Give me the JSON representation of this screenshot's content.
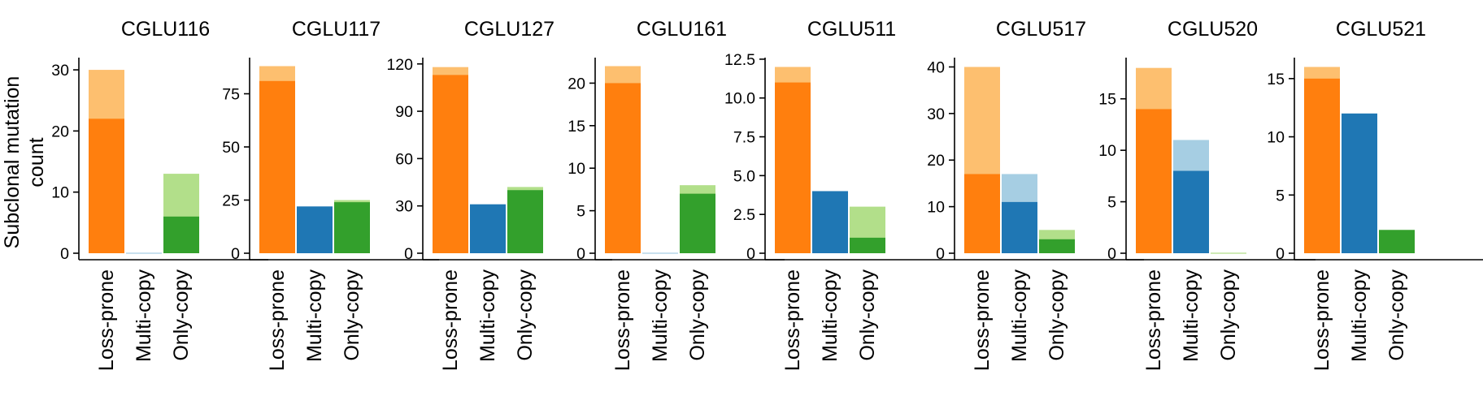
{
  "chart_data": {
    "type": "bar",
    "stacked": true,
    "ylabel_lines": [
      "Subclonal mutation",
      "count"
    ],
    "categories": [
      "Loss-prone",
      "Multi-copy",
      "Only-copy"
    ],
    "colors": {
      "Loss-prone": {
        "dark": "#ff7f0e",
        "light": "#fdbf6f"
      },
      "Multi-copy": {
        "dark": "#1f77b4",
        "light": "#a6cee3"
      },
      "Only-copy": {
        "dark": "#33a02c",
        "light": "#b2df8a"
      }
    },
    "panels": [
      {
        "title": "CGLU116",
        "ylim": [
          0,
          32
        ],
        "yticks": [
          0,
          10,
          20,
          30
        ],
        "ytick_labels": [
          "0",
          "10",
          "20",
          "30"
        ],
        "dark": [
          22,
          0,
          6
        ],
        "total": [
          30,
          0,
          13
        ]
      },
      {
        "title": "CGLU117",
        "ylim": [
          0,
          92
        ],
        "yticks": [
          0,
          25,
          50,
          75
        ],
        "ytick_labels": [
          "0",
          "25",
          "50",
          "75"
        ],
        "dark": [
          81,
          22,
          24
        ],
        "total": [
          88,
          22,
          25
        ]
      },
      {
        "title": "CGLU127",
        "ylim": [
          0,
          124
        ],
        "yticks": [
          0,
          30,
          60,
          90,
          120
        ],
        "ytick_labels": [
          "0",
          "30",
          "60",
          "90",
          "120"
        ],
        "dark": [
          113,
          31,
          40
        ],
        "total": [
          118,
          31,
          42
        ]
      },
      {
        "title": "CGLU161",
        "ylim": [
          0,
          23
        ],
        "yticks": [
          0,
          5,
          10,
          15,
          20
        ],
        "ytick_labels": [
          "0",
          "5",
          "10",
          "15",
          "20"
        ],
        "dark": [
          20,
          0,
          7
        ],
        "total": [
          22,
          0,
          8
        ]
      },
      {
        "title": "CGLU511",
        "ylim": [
          0,
          12.6
        ],
        "yticks": [
          0,
          2.5,
          5,
          7.5,
          10,
          12.5
        ],
        "ytick_labels": [
          "0",
          "2.5",
          "5.0",
          "7.5",
          "10.0",
          "12.5"
        ],
        "dark": [
          11,
          4,
          1
        ],
        "total": [
          12,
          4,
          3
        ]
      },
      {
        "title": "CGLU517",
        "ylim": [
          0,
          42
        ],
        "yticks": [
          0,
          10,
          20,
          30,
          40
        ],
        "ytick_labels": [
          "0",
          "10",
          "20",
          "30",
          "40"
        ],
        "dark": [
          17,
          11,
          3
        ],
        "total": [
          40,
          17,
          5
        ]
      },
      {
        "title": "CGLU520",
        "ylim": [
          0,
          19
        ],
        "yticks": [
          0,
          5,
          10,
          15
        ],
        "ytick_labels": [
          "0",
          "5",
          "10",
          "15"
        ],
        "dark": [
          14,
          8,
          0
        ],
        "total": [
          18,
          11,
          0
        ]
      },
      {
        "title": "CGLU521",
        "ylim": [
          0,
          16.8
        ],
        "yticks": [
          0,
          5,
          10,
          15
        ],
        "ytick_labels": [
          "0",
          "5",
          "10",
          "15"
        ],
        "dark": [
          15,
          12,
          2
        ],
        "total": [
          16,
          12,
          2
        ]
      }
    ]
  }
}
